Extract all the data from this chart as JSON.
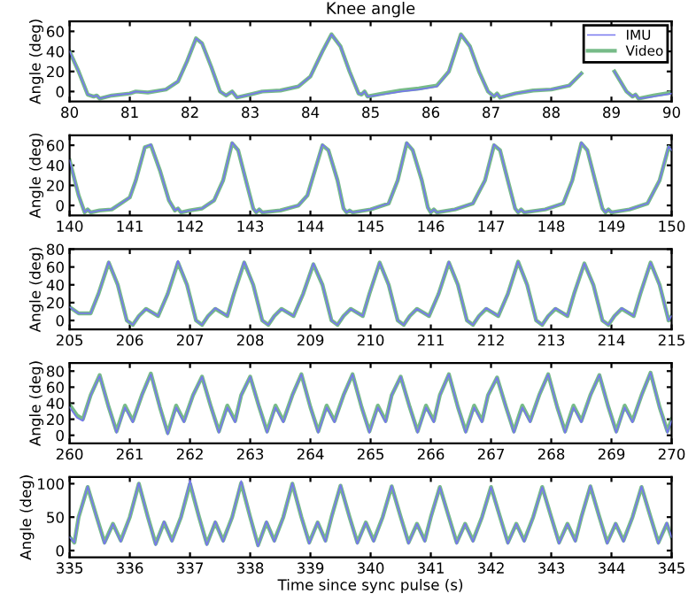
{
  "chart_data": [
    {
      "type": "line",
      "title": "Knee angle",
      "ylabel": "Angle (deg)",
      "legend": "top right",
      "grid": false,
      "xlim": [
        80,
        90
      ],
      "xticks": [
        80,
        81,
        82,
        83,
        84,
        85,
        86,
        87,
        88,
        89,
        90
      ],
      "ylim": [
        -10,
        70
      ],
      "yticks": [
        0,
        20,
        40,
        60
      ],
      "x": [
        80.0,
        80.15,
        80.3,
        80.4,
        80.45,
        80.5,
        80.7,
        81.0,
        81.1,
        81.3,
        81.6,
        81.8,
        81.95,
        82.1,
        82.2,
        82.35,
        82.5,
        82.6,
        82.7,
        82.78,
        83.0,
        83.2,
        83.5,
        83.8,
        84.0,
        84.2,
        84.35,
        84.5,
        84.65,
        84.8,
        84.85,
        84.9,
        84.95,
        85.2,
        85.5,
        85.8,
        86.1,
        86.3,
        86.5,
        86.65,
        86.8,
        86.95,
        87.05,
        87.1,
        87.15,
        87.4,
        87.7,
        88.0,
        88.3,
        88.5,
        88.7,
        88.8,
        88.9,
        89.05,
        89.25,
        89.35,
        89.4,
        89.45,
        89.7,
        90.0
      ],
      "series": [
        {
          "name": "IMU",
          "color": "#7777ee",
          "values": [
            40,
            20,
            -3,
            -5,
            -4,
            -7,
            -4,
            -2,
            0,
            -1,
            2,
            10,
            30,
            53,
            48,
            25,
            0,
            -4,
            0,
            -6,
            -3,
            0,
            1,
            5,
            15,
            40,
            57,
            45,
            20,
            -2,
            -3,
            0,
            -5,
            -3,
            0,
            2,
            5,
            20,
            57,
            45,
            20,
            0,
            -5,
            -2,
            -6,
            -2,
            1,
            2,
            6,
            18,
            null,
            null,
            null,
            20,
            0,
            -5,
            -3,
            -7,
            -5,
            -2
          ]
        },
        {
          "name": "Video",
          "color": "#77bb88",
          "values": [
            40,
            20,
            -3,
            -5,
            -4,
            -7,
            -4,
            -2,
            0,
            -1,
            2,
            10,
            30,
            53,
            48,
            25,
            0,
            -4,
            0,
            -6,
            -3,
            0,
            1,
            5,
            15,
            40,
            57,
            45,
            20,
            -2,
            -3,
            0,
            -5,
            -2,
            1,
            3,
            6,
            20,
            57,
            45,
            20,
            0,
            -5,
            -2,
            -6,
            -2,
            1,
            2,
            6,
            18,
            null,
            null,
            null,
            20,
            0,
            -5,
            -3,
            -7,
            -4,
            -1
          ]
        }
      ]
    },
    {
      "type": "line",
      "ylabel": "Angle (deg)",
      "grid": false,
      "xlim": [
        140,
        150
      ],
      "xticks": [
        140,
        141,
        142,
        143,
        144,
        145,
        146,
        147,
        148,
        149,
        150
      ],
      "ylim": [
        -10,
        70
      ],
      "yticks": [
        0,
        20,
        40,
        60
      ],
      "x": [
        140.0,
        140.15,
        140.25,
        140.3,
        140.35,
        140.5,
        140.7,
        140.85,
        141.0,
        141.1,
        141.25,
        141.35,
        141.5,
        141.65,
        141.75,
        141.8,
        141.85,
        142.0,
        142.2,
        142.4,
        142.55,
        142.7,
        142.8,
        142.95,
        143.05,
        143.1,
        143.15,
        143.2,
        143.5,
        143.8,
        143.95,
        144.05,
        144.2,
        144.3,
        144.45,
        144.55,
        144.6,
        144.65,
        144.7,
        145.0,
        145.3,
        145.45,
        145.6,
        145.7,
        145.85,
        145.95,
        146.0,
        146.05,
        146.1,
        146.4,
        146.7,
        146.9,
        147.05,
        147.15,
        147.3,
        147.4,
        147.45,
        147.5,
        147.55,
        147.9,
        148.2,
        148.35,
        148.5,
        148.6,
        148.75,
        148.85,
        148.9,
        148.95,
        149.0,
        149.3,
        149.6,
        149.8,
        149.95,
        150.0
      ],
      "series": [
        {
          "color": "#7777ee",
          "values": [
            45,
            10,
            -7,
            -4,
            -7,
            -5,
            -4,
            2,
            8,
            25,
            58,
            61,
            35,
            5,
            -5,
            -3,
            -7,
            -5,
            -3,
            5,
            25,
            63,
            55,
            20,
            -3,
            -7,
            -4,
            -7,
            -5,
            0,
            10,
            30,
            61,
            55,
            25,
            -3,
            -7,
            -5,
            -7,
            -4,
            2,
            25,
            63,
            55,
            25,
            -2,
            -7,
            -4,
            -7,
            -4,
            2,
            25,
            61,
            55,
            20,
            -3,
            -7,
            -4,
            -7,
            -4,
            2,
            25,
            63,
            55,
            20,
            -3,
            -7,
            -4,
            -7,
            -4,
            2,
            25,
            59,
            55
          ]
        },
        {
          "color": "#77bb88",
          "values": [
            45,
            10,
            -7,
            -4,
            -7,
            -5,
            -4,
            2,
            8,
            25,
            58,
            60,
            35,
            5,
            -5,
            -3,
            -7,
            -5,
            -3,
            5,
            25,
            62,
            55,
            20,
            -3,
            -7,
            -4,
            -7,
            -5,
            0,
            10,
            30,
            60,
            55,
            25,
            -3,
            -7,
            -5,
            -7,
            -4,
            2,
            25,
            62,
            55,
            25,
            -2,
            -7,
            -4,
            -7,
            -4,
            2,
            25,
            60,
            55,
            20,
            -3,
            -7,
            -4,
            -7,
            -4,
            2,
            25,
            62,
            55,
            20,
            -3,
            -7,
            -4,
            -7,
            -4,
            2,
            25,
            58,
            55
          ]
        }
      ]
    },
    {
      "type": "line",
      "ylabel": "Angle (deg)",
      "grid": false,
      "xlim": [
        205,
        215
      ],
      "xticks": [
        205,
        206,
        207,
        208,
        209,
        210,
        211,
        212,
        213,
        214,
        215
      ],
      "ylim": [
        -10,
        80
      ],
      "yticks": [
        0,
        20,
        40,
        60,
        80
      ],
      "x": [
        205.0,
        205.15,
        205.35,
        205.48,
        205.65,
        205.8,
        205.95,
        206.05,
        206.15,
        206.27,
        206.47,
        206.63,
        206.8,
        206.95,
        207.1,
        207.2,
        207.3,
        207.42,
        207.62,
        207.73,
        207.9,
        208.05,
        208.2,
        208.3,
        208.4,
        208.52,
        208.72,
        208.88,
        209.05,
        209.2,
        209.35,
        209.45,
        209.55,
        209.67,
        209.87,
        209.98,
        210.15,
        210.3,
        210.45,
        210.55,
        210.65,
        210.77,
        210.97,
        211.13,
        211.3,
        211.45,
        211.6,
        211.7,
        211.8,
        211.92,
        212.12,
        212.28,
        212.45,
        212.6,
        212.75,
        212.85,
        212.95,
        213.07,
        213.27,
        213.38,
        213.55,
        213.7,
        213.85,
        213.95,
        214.05,
        214.17,
        214.37,
        214.48,
        214.65,
        214.8,
        214.95,
        215.0
      ],
      "series": [
        {
          "color": "#7777ee",
          "values": [
            15,
            8,
            8,
            30,
            66,
            40,
            0,
            -5,
            5,
            13,
            5,
            30,
            67,
            40,
            0,
            -5,
            5,
            14,
            5,
            30,
            66,
            40,
            0,
            -5,
            5,
            13,
            5,
            30,
            64,
            40,
            0,
            -5,
            5,
            13,
            5,
            30,
            65,
            40,
            0,
            -5,
            5,
            13,
            5,
            30,
            66,
            40,
            0,
            -5,
            5,
            14,
            5,
            30,
            66,
            40,
            0,
            -5,
            5,
            14,
            5,
            30,
            64,
            40,
            0,
            -5,
            5,
            14,
            5,
            30,
            65,
            40,
            0,
            5
          ]
        },
        {
          "color": "#77bb88",
          "values": [
            15,
            8,
            8,
            30,
            65,
            40,
            0,
            -5,
            5,
            13,
            5,
            30,
            65,
            40,
            0,
            -5,
            5,
            13,
            5,
            30,
            65,
            40,
            0,
            -5,
            5,
            13,
            5,
            30,
            63,
            40,
            0,
            -5,
            5,
            13,
            5,
            30,
            65,
            40,
            0,
            -5,
            5,
            13,
            5,
            30,
            65,
            40,
            0,
            -5,
            5,
            13,
            5,
            30,
            66,
            40,
            0,
            -5,
            5,
            13,
            5,
            30,
            64,
            40,
            0,
            -5,
            5,
            13,
            5,
            30,
            65,
            40,
            0,
            5
          ]
        }
      ]
    },
    {
      "type": "line",
      "ylabel": "Angle (deg)",
      "grid": false,
      "xlim": [
        260,
        270
      ],
      "xticks": [
        260,
        261,
        262,
        263,
        264,
        265,
        266,
        267,
        268,
        269,
        270
      ],
      "ylim": [
        -10,
        90
      ],
      "yticks": [
        0,
        20,
        40,
        60,
        80
      ],
      "x": [
        260.0,
        260.12,
        260.22,
        260.35,
        260.5,
        260.65,
        260.78,
        260.92,
        261.05,
        261.2,
        261.35,
        261.5,
        261.63,
        261.77,
        261.9,
        262.05,
        262.2,
        262.35,
        262.48,
        262.62,
        262.75,
        262.85,
        263.0,
        263.15,
        263.28,
        263.42,
        263.55,
        263.7,
        263.85,
        264.0,
        264.13,
        264.27,
        264.4,
        264.55,
        264.7,
        264.85,
        264.98,
        265.12,
        265.25,
        265.35,
        265.5,
        265.65,
        265.78,
        265.92,
        266.05,
        266.15,
        266.3,
        266.45,
        266.58,
        266.72,
        266.85,
        266.95,
        267.1,
        267.25,
        267.38,
        267.52,
        267.65,
        267.8,
        267.95,
        268.1,
        268.23,
        268.37,
        268.5,
        268.65,
        268.8,
        268.95,
        269.08,
        269.22,
        269.35,
        269.5,
        269.65,
        269.8,
        269.93,
        270.0
      ],
      "series": [
        {
          "color": "#7777ee",
          "values": [
            35,
            22,
            18,
            50,
            74,
            35,
            3,
            35,
            16,
            50,
            76,
            35,
            1,
            35,
            16,
            50,
            73,
            35,
            3,
            35,
            16,
            50,
            73,
            35,
            3,
            35,
            16,
            50,
            76,
            35,
            3,
            35,
            16,
            50,
            76,
            35,
            3,
            35,
            16,
            50,
            73,
            35,
            3,
            35,
            16,
            50,
            76,
            35,
            3,
            35,
            16,
            50,
            72,
            35,
            3,
            35,
            16,
            50,
            76,
            35,
            3,
            35,
            16,
            50,
            75,
            35,
            3,
            35,
            16,
            50,
            78,
            35,
            3,
            18
          ]
        },
        {
          "color": "#77bb88",
          "values": [
            38,
            25,
            20,
            50,
            75,
            35,
            5,
            37,
            18,
            50,
            77,
            35,
            3,
            37,
            18,
            50,
            73,
            35,
            5,
            37,
            18,
            50,
            73,
            35,
            5,
            37,
            18,
            50,
            76,
            35,
            5,
            37,
            18,
            50,
            76,
            35,
            5,
            37,
            18,
            50,
            73,
            35,
            5,
            37,
            18,
            50,
            76,
            35,
            5,
            37,
            18,
            50,
            72,
            35,
            5,
            37,
            18,
            50,
            76,
            35,
            5,
            37,
            18,
            50,
            75,
            35,
            5,
            37,
            18,
            50,
            78,
            35,
            5,
            20
          ]
        }
      ]
    },
    {
      "type": "line",
      "ylabel": "Angle (deg)",
      "xlabel": "Time since sync pulse (s)",
      "grid": false,
      "xlim": [
        335,
        345
      ],
      "xticks": [
        335,
        336,
        337,
        338,
        339,
        340,
        341,
        342,
        343,
        344,
        345
      ],
      "ylim": [
        -10,
        110
      ],
      "yticks": [
        0,
        50,
        100
      ],
      "x": [
        335.0,
        335.08,
        335.15,
        335.3,
        335.45,
        335.58,
        335.72,
        335.85,
        336.0,
        336.15,
        336.3,
        336.43,
        336.57,
        336.7,
        336.85,
        337.0,
        337.15,
        337.28,
        337.42,
        337.55,
        337.7,
        337.85,
        338.0,
        338.13,
        338.27,
        338.4,
        338.55,
        338.7,
        338.85,
        338.98,
        339.12,
        339.25,
        339.35,
        339.5,
        339.65,
        339.78,
        339.92,
        340.05,
        340.2,
        340.35,
        340.5,
        340.63,
        340.77,
        340.9,
        341.0,
        341.15,
        341.3,
        341.43,
        341.57,
        341.7,
        341.85,
        342.0,
        342.15,
        342.28,
        342.42,
        342.55,
        342.7,
        342.85,
        343.0,
        343.13,
        343.27,
        343.4,
        343.5,
        343.65,
        343.8,
        343.93,
        344.07,
        344.2,
        344.35,
        344.5,
        344.65,
        344.78,
        344.92,
        345.0
      ],
      "series": [
        {
          "color": "#7777ee",
          "values": [
            20,
            12,
            50,
            96,
            50,
            10,
            40,
            13,
            50,
            101,
            50,
            8,
            44,
            13,
            50,
            105,
            50,
            8,
            44,
            13,
            50,
            104,
            50,
            6,
            44,
            13,
            50,
            101,
            50,
            10,
            43,
            13,
            50,
            98,
            50,
            10,
            42,
            13,
            50,
            97,
            50,
            10,
            40,
            13,
            50,
            95,
            50,
            10,
            40,
            13,
            50,
            95,
            50,
            10,
            40,
            13,
            50,
            95,
            50,
            10,
            40,
            13,
            50,
            97,
            50,
            10,
            41,
            13,
            50,
            96,
            50,
            10,
            42,
            20
          ]
        },
        {
          "color": "#77bb88",
          "values": [
            20,
            12,
            50,
            95,
            50,
            12,
            40,
            15,
            50,
            100,
            50,
            10,
            42,
            15,
            50,
            100,
            50,
            10,
            42,
            15,
            50,
            101,
            50,
            8,
            42,
            15,
            50,
            100,
            50,
            12,
            42,
            15,
            50,
            97,
            50,
            12,
            42,
            15,
            50,
            96,
            50,
            12,
            40,
            15,
            50,
            95,
            50,
            12,
            40,
            15,
            50,
            95,
            50,
            12,
            40,
            15,
            50,
            95,
            50,
            12,
            40,
            15,
            50,
            96,
            50,
            12,
            40,
            15,
            50,
            95,
            50,
            12,
            40,
            20
          ]
        }
      ]
    }
  ]
}
